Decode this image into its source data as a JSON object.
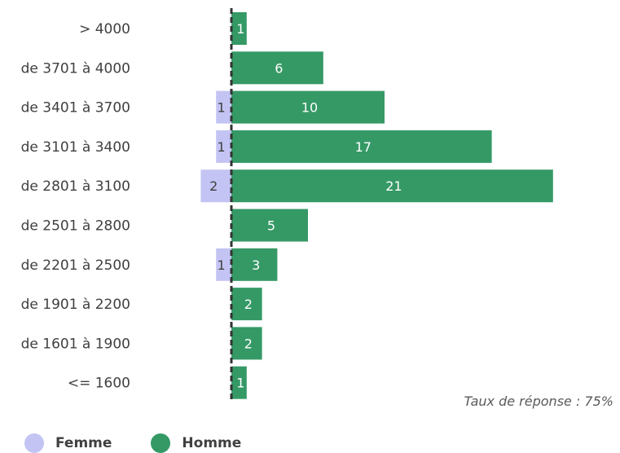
{
  "chart_data": {
    "type": "bar",
    "orientation": "horizontal",
    "categories": [
      "> 4000",
      "de 3701 à 4000",
      "de 3401 à 3700",
      "de 3101 à 3400",
      "de 2801 à 3100",
      "de 2501 à 2800",
      "de 2201 à 2500",
      "de 1901 à 2200",
      "de 1601 à 1900",
      "<= 1600"
    ],
    "series": [
      {
        "name": "Femme",
        "color": "#c4c4f4",
        "direction": "left",
        "values": [
          0,
          0,
          1,
          1,
          2,
          0,
          1,
          0,
          0,
          0
        ]
      },
      {
        "name": "Homme",
        "color": "#359966",
        "direction": "right",
        "values": [
          1,
          6,
          10,
          17,
          21,
          5,
          3,
          2,
          2,
          1
        ]
      }
    ],
    "title": "",
    "xlabel": "",
    "ylabel": "",
    "grid": false,
    "legend": "bottom-left"
  },
  "note": "Taux de réponse : 75%"
}
